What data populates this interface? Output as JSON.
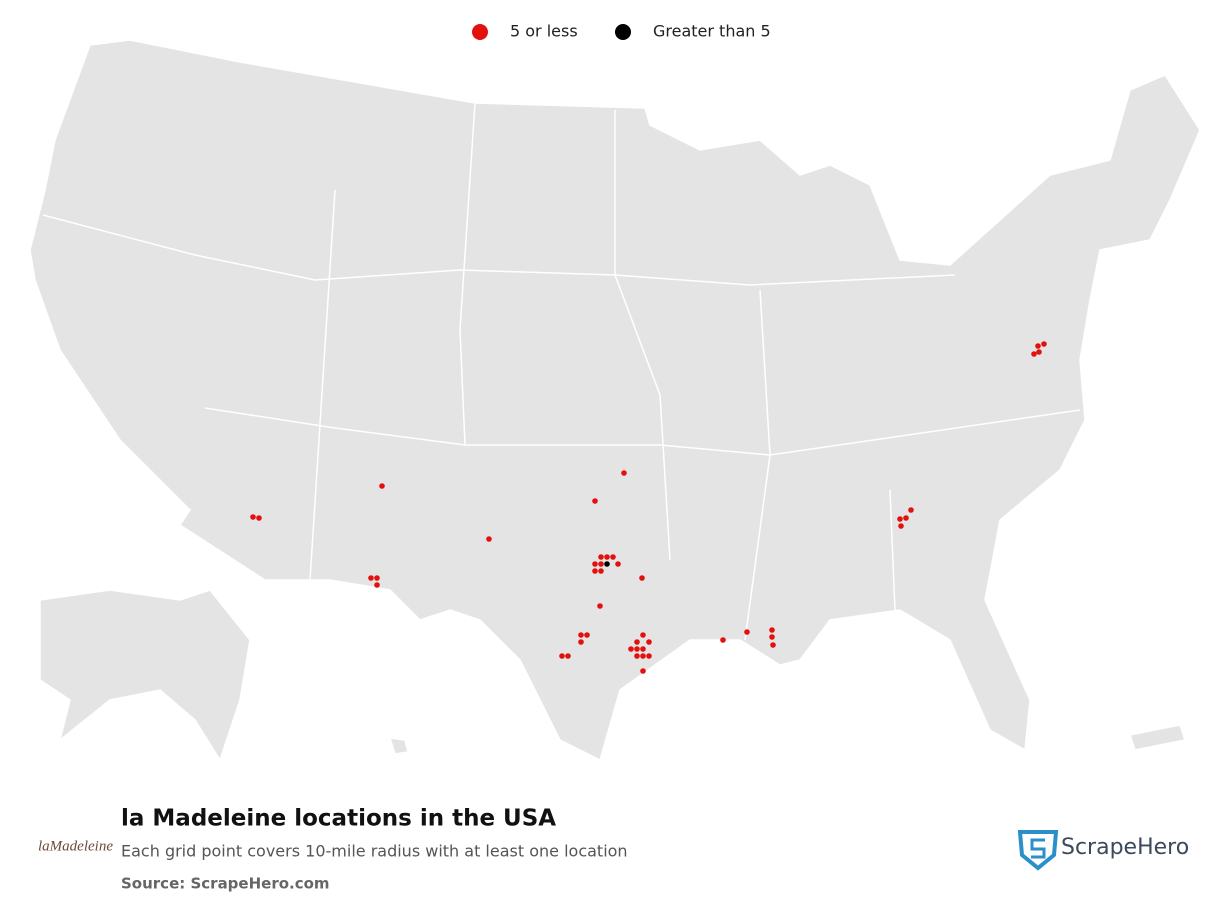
{
  "legend": {
    "items": [
      {
        "label": "5 or less",
        "color": "#e2110e"
      },
      {
        "label": "Greater than 5",
        "color": "#000000"
      }
    ]
  },
  "title": "la Madeleine locations in the USA",
  "subtitle": "Each grid point covers 10-mile radius with at least one location",
  "source": "Source: ScrapeHero.com",
  "brand_logo": "laMadeleine",
  "publisher_logo": "ScrapeHero"
}
